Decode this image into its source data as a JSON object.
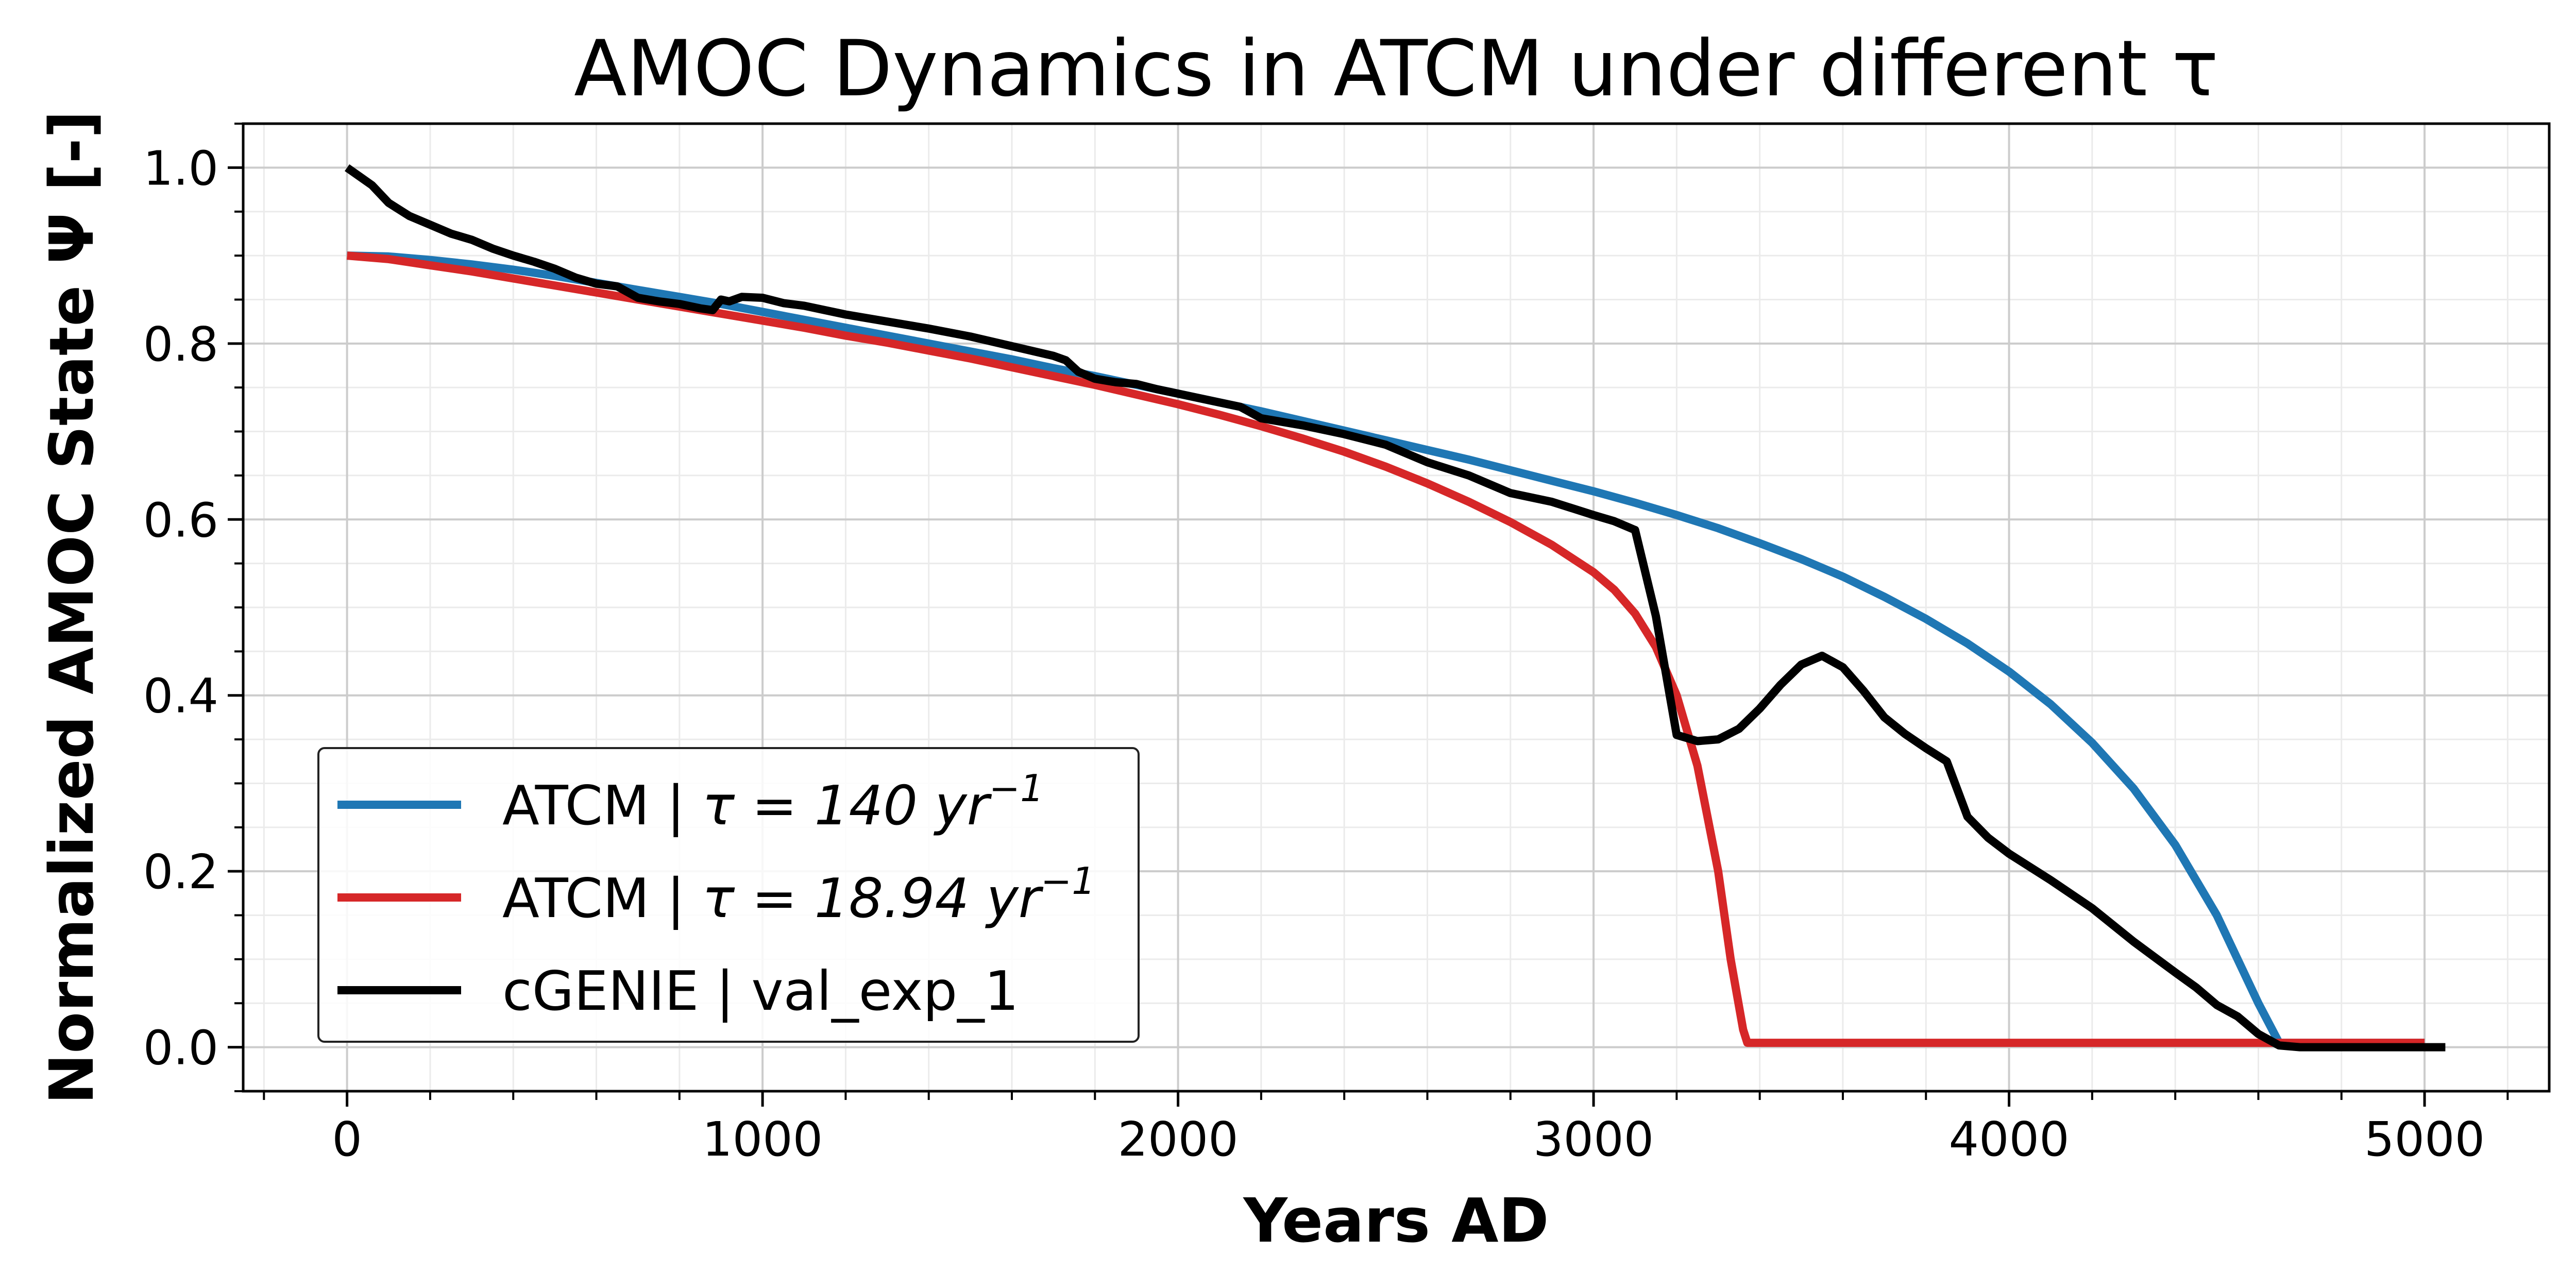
{
  "chart_data": {
    "type": "line",
    "title": "AMOC Dynamics in ATCM under different τ",
    "xlabel": "Years AD",
    "ylabel": "Normalized AMOC State Ψ [-]",
    "xlim": [
      -250,
      5300
    ],
    "ylim": [
      -0.05,
      1.05
    ],
    "xticks": [
      0,
      1000,
      2000,
      3000,
      4000,
      5000
    ],
    "xtick_labels": [
      "0",
      "1000",
      "2000",
      "3000",
      "4000",
      "5000"
    ],
    "yticks": [
      0.0,
      0.2,
      0.4,
      0.6,
      0.8,
      1.0
    ],
    "ytick_labels": [
      "0.0",
      "0.2",
      "0.4",
      "0.6",
      "0.8",
      "1.0"
    ],
    "grid": true,
    "legend_position": "lower-left",
    "series": [
      {
        "name": "ATCM | τ = 140 yr⁻¹",
        "legend_prefix": "ATCM | ",
        "legend_tau_text": "τ = 140 yr",
        "legend_exp": "−1",
        "color": "#1f77b4",
        "x": [
          0,
          100,
          200,
          300,
          400,
          500,
          600,
          700,
          800,
          900,
          1000,
          1100,
          1200,
          1300,
          1400,
          1500,
          1600,
          1700,
          1800,
          1900,
          2000,
          2100,
          2200,
          2300,
          2400,
          2500,
          2600,
          2700,
          2800,
          2900,
          3000,
          3100,
          3200,
          3300,
          3400,
          3500,
          3600,
          3700,
          3800,
          3900,
          4000,
          4100,
          4200,
          4300,
          4400,
          4500,
          4600,
          4650,
          4700,
          4800,
          4900,
          5000
        ],
        "y": [
          0.9,
          0.899,
          0.895,
          0.89,
          0.884,
          0.877,
          0.869,
          0.861,
          0.853,
          0.845,
          0.836,
          0.827,
          0.818,
          0.809,
          0.8,
          0.791,
          0.782,
          0.772,
          0.763,
          0.753,
          0.743,
          0.733,
          0.723,
          0.712,
          0.701,
          0.69,
          0.679,
          0.668,
          0.656,
          0.644,
          0.632,
          0.619,
          0.605,
          0.59,
          0.573,
          0.555,
          0.535,
          0.512,
          0.487,
          0.459,
          0.427,
          0.39,
          0.346,
          0.294,
          0.23,
          0.15,
          0.05,
          0.005,
          0.005,
          0.005,
          0.005,
          0.005
        ]
      },
      {
        "name": "ATCM | τ = 18.94 yr⁻¹",
        "legend_prefix": "ATCM | ",
        "legend_tau_text": "τ = 18.94 yr",
        "legend_exp": "−1",
        "color": "#d62728",
        "x": [
          0,
          100,
          200,
          300,
          400,
          500,
          600,
          700,
          800,
          900,
          1000,
          1100,
          1200,
          1300,
          1400,
          1500,
          1600,
          1700,
          1800,
          1900,
          2000,
          2100,
          2200,
          2300,
          2400,
          2500,
          2600,
          2700,
          2800,
          2900,
          3000,
          3050,
          3100,
          3150,
          3200,
          3250,
          3300,
          3330,
          3360,
          3370,
          3400,
          3500,
          4000,
          4500,
          5000
        ],
        "y": [
          0.9,
          0.896,
          0.889,
          0.882,
          0.874,
          0.866,
          0.858,
          0.85,
          0.842,
          0.834,
          0.826,
          0.818,
          0.809,
          0.801,
          0.792,
          0.783,
          0.773,
          0.763,
          0.753,
          0.742,
          0.731,
          0.719,
          0.706,
          0.692,
          0.677,
          0.66,
          0.641,
          0.62,
          0.597,
          0.571,
          0.54,
          0.52,
          0.493,
          0.455,
          0.4,
          0.32,
          0.2,
          0.1,
          0.02,
          0.005,
          0.005,
          0.005,
          0.005,
          0.005,
          0.005
        ]
      },
      {
        "name": "cGENIE | val_exp_1",
        "legend_prefix": "cGENIE | val_exp_1",
        "color": "#000000",
        "x": [
          0,
          30,
          60,
          100,
          150,
          200,
          250,
          300,
          350,
          400,
          450,
          500,
          550,
          600,
          650,
          700,
          750,
          800,
          850,
          880,
          900,
          920,
          950,
          1000,
          1050,
          1100,
          1200,
          1300,
          1400,
          1500,
          1600,
          1700,
          1730,
          1760,
          1800,
          1850,
          1900,
          1950,
          2000,
          2100,
          2150,
          2200,
          2300,
          2400,
          2500,
          2600,
          2700,
          2800,
          2850,
          2900,
          3000,
          3050,
          3100,
          3150,
          3200,
          3250,
          3300,
          3350,
          3400,
          3450,
          3500,
          3550,
          3600,
          3650,
          3700,
          3750,
          3800,
          3850,
          3900,
          3950,
          4000,
          4100,
          4200,
          4300,
          4400,
          4450,
          4500,
          4550,
          4600,
          4650,
          4700,
          4800,
          4900,
          5000,
          5050
        ],
        "y": [
          1.0,
          0.99,
          0.98,
          0.96,
          0.945,
          0.935,
          0.925,
          0.918,
          0.908,
          0.9,
          0.893,
          0.885,
          0.875,
          0.868,
          0.865,
          0.852,
          0.848,
          0.845,
          0.84,
          0.838,
          0.85,
          0.848,
          0.853,
          0.852,
          0.846,
          0.843,
          0.833,
          0.825,
          0.817,
          0.808,
          0.797,
          0.786,
          0.781,
          0.768,
          0.76,
          0.756,
          0.754,
          0.748,
          0.743,
          0.733,
          0.728,
          0.715,
          0.707,
          0.697,
          0.685,
          0.665,
          0.65,
          0.63,
          0.625,
          0.62,
          0.605,
          0.598,
          0.588,
          0.49,
          0.355,
          0.348,
          0.35,
          0.362,
          0.385,
          0.412,
          0.435,
          0.445,
          0.432,
          0.405,
          0.375,
          0.356,
          0.34,
          0.325,
          0.262,
          0.238,
          0.22,
          0.19,
          0.158,
          0.12,
          0.085,
          0.068,
          0.048,
          0.035,
          0.015,
          0.002,
          0.0,
          0.0,
          0.0,
          0.0,
          0.0
        ]
      }
    ]
  }
}
